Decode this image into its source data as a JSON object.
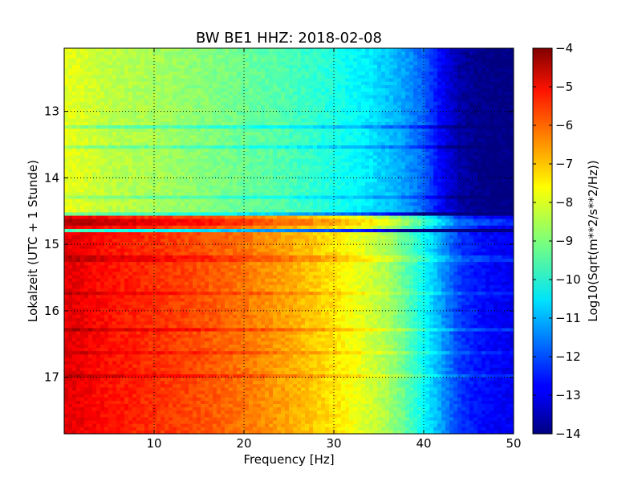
{
  "chart_data": {
    "type": "heatmap",
    "title": "BW BE1 HHZ: 2018-02-08",
    "xlabel": "Frequency [Hz]",
    "ylabel": "Lokalzeit (UTC + 1 Stunde)",
    "colorbar_label": "Log10(Sqrt(m**2/s**2/Hz))",
    "xlim": [
      0,
      50
    ],
    "ylim": [
      12.05,
      17.85
    ],
    "y_inverted": true,
    "color_limits": [
      -14,
      -4
    ],
    "colormap": "jet",
    "grid": true,
    "x_ticks": [
      10,
      20,
      30,
      40,
      50
    ],
    "x_tick_labels": [
      "10",
      "20",
      "30",
      "40",
      "50"
    ],
    "y_ticks": [
      13,
      14,
      15,
      16,
      17
    ],
    "y_tick_labels": [
      "13",
      "14",
      "15",
      "16",
      "17"
    ],
    "colorbar_ticks": [
      -4,
      -5,
      -6,
      -7,
      -8,
      -9,
      -10,
      -11,
      -12,
      -13,
      -14
    ],
    "colorbar_tick_labels": [
      "−4",
      "−5",
      "−6",
      "−7",
      "−8",
      "−9",
      "−10",
      "−11",
      "−12",
      "−13",
      "−14"
    ],
    "frequency_profile_hz": [
      0,
      2,
      5,
      10,
      15,
      20,
      25,
      30,
      33,
      36,
      38,
      40,
      42,
      44,
      46,
      48,
      50
    ],
    "regions": [
      {
        "time_range": [
          12.05,
          14.52
        ],
        "values": [
          -8.0,
          -8.1,
          -8.4,
          -8.6,
          -8.9,
          -9.2,
          -9.5,
          -10.0,
          -10.3,
          -10.8,
          -11.2,
          -11.8,
          -12.8,
          -13.6,
          -13.9,
          -14.0,
          -14.0
        ]
      },
      {
        "time_range": [
          14.52,
          17.85
        ],
        "values": [
          -5.0,
          -5.1,
          -5.4,
          -5.7,
          -6.0,
          -6.4,
          -6.9,
          -7.5,
          -8.0,
          -8.6,
          -9.3,
          -10.2,
          -11.2,
          -12.2,
          -12.6,
          -12.8,
          -12.9
        ]
      }
    ],
    "band_offsets": [
      {
        "time": 13.22,
        "offset": -0.8
      },
      {
        "time": 13.55,
        "offset": -0.7
      },
      {
        "time": 14.3,
        "offset": -0.6
      },
      {
        "time": 14.54,
        "offset": -4.0
      },
      {
        "time": 14.67,
        "offset": 0.6
      },
      {
        "time": 14.8,
        "offset": -4.5
      },
      {
        "time": 15.22,
        "offset": 0.5
      },
      {
        "time": 15.75,
        "offset": 0.4
      },
      {
        "time": 16.28,
        "offset": 0.6
      },
      {
        "time": 16.62,
        "offset": 0.4
      },
      {
        "time": 16.98,
        "offset": 0.5
      }
    ]
  }
}
